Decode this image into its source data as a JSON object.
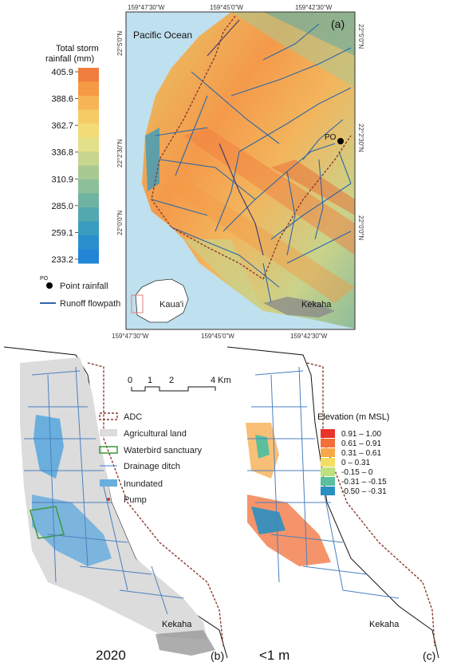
{
  "panel_a": {
    "label": "(a)",
    "ocean_label": "Pacific Ocean",
    "point_label": "PO",
    "town_label": "Kekaha",
    "inset_label": "Kaua'i",
    "coords_top": [
      "159°47'30\"W",
      "159°45'0\"W",
      "159°42'30\"W"
    ],
    "coords_bottom": [
      "159°47'30\"W",
      "159°45'0\"W",
      "159°42'30\"W"
    ],
    "coords_left": [
      "22°5'0\"N",
      "22°2'30\"N",
      "22°0'0\"N"
    ],
    "coords_right": [
      "22°5'0\"N",
      "22°2'30\"N",
      "22°0'0\"N"
    ],
    "colorbar": {
      "title_line1": "Total storm",
      "title_line2": "rainfall (mm)",
      "ticks": [
        "405.9",
        "388.6",
        "362.7",
        "336.8",
        "310.9",
        "285.0",
        "259.1",
        "233.2"
      ],
      "colors": [
        "#f07e3e",
        "#f59a45",
        "#f7b457",
        "#f6cb66",
        "#f2dc77",
        "#e2e189",
        "#c7d68e",
        "#a9c992",
        "#8dbf98",
        "#6fb3a2",
        "#52a8ae",
        "#3a9cbe",
        "#2a90cd",
        "#2285d6"
      ]
    },
    "legend": {
      "point_rainfall_prefix": "PO",
      "point_rainfall": "Point rainfall",
      "runoff_flowpath": "Runoff flowpath"
    },
    "colors": {
      "ocean": "#bfe0ee",
      "flowpath": "#2b67a8",
      "boundary": "#8b3a2e"
    }
  },
  "panel_b": {
    "label": "(b)",
    "caption": "2020",
    "town_label": "Kekaha",
    "scale_ticks": [
      "0",
      "1",
      "2",
      "4 Km"
    ],
    "legend": [
      {
        "label": "ADC",
        "icon": "dashed-boundary-icon"
      },
      {
        "label": "Agricultural land",
        "icon": "gray-fill-icon"
      },
      {
        "label": "Waterbird sanctuary",
        "icon": "green-outline-icon"
      },
      {
        "label": "Drainage ditch",
        "icon": "blue-line-icon"
      },
      {
        "label": "Inundated",
        "icon": "blue-fill-icon"
      },
      {
        "label": "Pump",
        "icon": "red-dot-icon"
      }
    ],
    "colors": {
      "agri": "#dcdcdc",
      "inundated": "#6aaede",
      "sanctuary": "#3a9a3a",
      "ditch": "#4a80c0",
      "pump": "#c0392b",
      "adc": "#8b3a2e"
    }
  },
  "panel_c": {
    "label": "(c)",
    "caption": "<1 m",
    "town_label": "Kekaha",
    "legend_title": "Elevation (m MSL)",
    "classes": [
      {
        "label": "0.91 – 1.00",
        "color": "#e8322a"
      },
      {
        "label": "0.61 – 0.91",
        "color": "#f2703a"
      },
      {
        "label": "0.31 – 0.61",
        "color": "#f7a94a"
      },
      {
        "label": "0 – 0.31",
        "color": "#f5dd63"
      },
      {
        "label": "-0.15 – 0",
        "color": "#bfe07e"
      },
      {
        "label": "-0.31 – -0.15",
        "color": "#5bbf9d"
      },
      {
        "label": "-0.50 – -0.31",
        "color": "#2a8fc2"
      }
    ]
  }
}
